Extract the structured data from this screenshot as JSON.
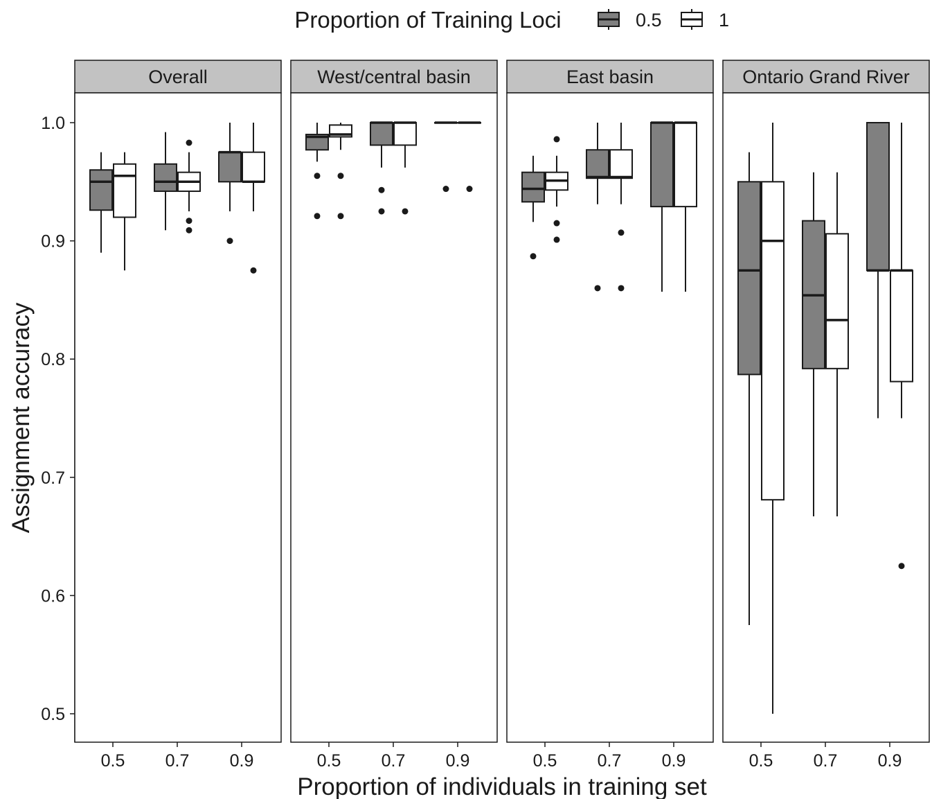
{
  "chart_data": {
    "type": "box",
    "legend": {
      "title": "Proportion of Training Loci",
      "position": "top",
      "entries": [
        {
          "label": "0.5",
          "fill": "#808080"
        },
        {
          "label": "1",
          "fill": "#ffffff"
        }
      ]
    },
    "xlabel": "Proportion of individuals in training set",
    "ylabel": "Assignment accuracy",
    "categories": [
      "0.5",
      "0.7",
      "0.9"
    ],
    "ylim": [
      0.475,
      1.03
    ],
    "yticks": [
      0.5,
      0.6,
      0.7,
      0.8,
      0.9,
      1.0
    ],
    "ytick_labels": [
      "0.5",
      "0.6",
      "0.7",
      "0.8",
      "0.9",
      "1.0"
    ],
    "grid": false,
    "facets": [
      {
        "title": "Overall",
        "boxes": [
          {
            "x": "0.5",
            "loci": "0.5",
            "whisker_low": 0.89,
            "q1": 0.926,
            "median": 0.95,
            "q3": 0.96,
            "whisker_high": 0.975,
            "outliers": []
          },
          {
            "x": "0.5",
            "loci": "1",
            "whisker_low": 0.875,
            "q1": 0.92,
            "median": 0.955,
            "q3": 0.965,
            "whisker_high": 0.975,
            "outliers": []
          },
          {
            "x": "0.7",
            "loci": "0.5",
            "whisker_low": 0.909,
            "q1": 0.942,
            "median": 0.95,
            "q3": 0.965,
            "whisker_high": 0.992,
            "outliers": []
          },
          {
            "x": "0.7",
            "loci": "1",
            "whisker_low": 0.925,
            "q1": 0.942,
            "median": 0.95,
            "q3": 0.958,
            "whisker_high": 0.975,
            "outliers": [
              0.983,
              0.917,
              0.909
            ]
          },
          {
            "x": "0.9",
            "loci": "0.5",
            "whisker_low": 0.925,
            "q1": 0.95,
            "median": 0.975,
            "q3": 0.975,
            "whisker_high": 1.0,
            "outliers": [
              0.9
            ]
          },
          {
            "x": "0.9",
            "loci": "1",
            "whisker_low": 0.925,
            "q1": 0.95,
            "median": 0.95,
            "q3": 0.975,
            "whisker_high": 1.0,
            "outliers": [
              0.875
            ]
          }
        ]
      },
      {
        "title": "West/central basin",
        "boxes": [
          {
            "x": "0.5",
            "loci": "0.5",
            "whisker_low": 0.967,
            "q1": 0.977,
            "median": 0.988,
            "q3": 0.99,
            "whisker_high": 1.0,
            "outliers": [
              0.955,
              0.921
            ]
          },
          {
            "x": "0.5",
            "loci": "1",
            "whisker_low": 0.977,
            "q1": 0.988,
            "median": 0.99,
            "q3": 0.998,
            "whisker_high": 1.0,
            "outliers": [
              0.955,
              0.921
            ]
          },
          {
            "x": "0.7",
            "loci": "0.5",
            "whisker_low": 0.962,
            "q1": 0.981,
            "median": 1.0,
            "q3": 1.0,
            "whisker_high": 1.0,
            "outliers": [
              0.943,
              0.925
            ]
          },
          {
            "x": "0.7",
            "loci": "1",
            "whisker_low": 0.962,
            "q1": 0.981,
            "median": 1.0,
            "q3": 1.0,
            "whisker_high": 1.0,
            "outliers": [
              0.925
            ]
          },
          {
            "x": "0.9",
            "loci": "0.5",
            "whisker_low": 1.0,
            "q1": 1.0,
            "median": 1.0,
            "q3": 1.0,
            "whisker_high": 1.0,
            "outliers": [
              0.944
            ]
          },
          {
            "x": "0.9",
            "loci": "1",
            "whisker_low": 1.0,
            "q1": 1.0,
            "median": 1.0,
            "q3": 1.0,
            "whisker_high": 1.0,
            "outliers": [
              0.944
            ]
          }
        ]
      },
      {
        "title": "East basin",
        "boxes": [
          {
            "x": "0.5",
            "loci": "0.5",
            "whisker_low": 0.916,
            "q1": 0.933,
            "median": 0.944,
            "q3": 0.958,
            "whisker_high": 0.972,
            "outliers": [
              0.887
            ]
          },
          {
            "x": "0.5",
            "loci": "1",
            "whisker_low": 0.929,
            "q1": 0.943,
            "median": 0.951,
            "q3": 0.958,
            "whisker_high": 0.972,
            "outliers": [
              0.986,
              0.915,
              0.901
            ]
          },
          {
            "x": "0.7",
            "loci": "0.5",
            "whisker_low": 0.931,
            "q1": 0.953,
            "median": 0.954,
            "q3": 0.977,
            "whisker_high": 1.0,
            "outliers": [
              0.86
            ]
          },
          {
            "x": "0.7",
            "loci": "1",
            "whisker_low": 0.931,
            "q1": 0.953,
            "median": 0.954,
            "q3": 0.977,
            "whisker_high": 1.0,
            "outliers": [
              0.907,
              0.86
            ]
          },
          {
            "x": "0.9",
            "loci": "0.5",
            "whisker_low": 0.857,
            "q1": 0.929,
            "median": 1.0,
            "q3": 1.0,
            "whisker_high": 1.0,
            "outliers": []
          },
          {
            "x": "0.9",
            "loci": "1",
            "whisker_low": 0.857,
            "q1": 0.929,
            "median": 1.0,
            "q3": 1.0,
            "whisker_high": 1.0,
            "outliers": []
          }
        ]
      },
      {
        "title": "Ontario Grand River",
        "boxes": [
          {
            "x": "0.5",
            "loci": "0.5",
            "whisker_low": 0.575,
            "q1": 0.787,
            "median": 0.875,
            "q3": 0.95,
            "whisker_high": 0.975,
            "outliers": []
          },
          {
            "x": "0.5",
            "loci": "1",
            "whisker_low": 0.5,
            "q1": 0.681,
            "median": 0.9,
            "q3": 0.95,
            "whisker_high": 1.0,
            "outliers": []
          },
          {
            "x": "0.7",
            "loci": "0.5",
            "whisker_low": 0.667,
            "q1": 0.792,
            "median": 0.854,
            "q3": 0.917,
            "whisker_high": 0.958,
            "outliers": []
          },
          {
            "x": "0.7",
            "loci": "1",
            "whisker_low": 0.667,
            "q1": 0.792,
            "median": 0.833,
            "q3": 0.906,
            "whisker_high": 0.958,
            "outliers": []
          },
          {
            "x": "0.9",
            "loci": "0.5",
            "whisker_low": 0.75,
            "q1": 0.875,
            "median": 0.875,
            "q3": 1.0,
            "whisker_high": 1.0,
            "outliers": []
          },
          {
            "x": "0.9",
            "loci": "1",
            "whisker_low": 0.75,
            "q1": 0.781,
            "median": 0.875,
            "q3": 0.875,
            "whisker_high": 1.0,
            "outliers": [
              0.625
            ]
          }
        ]
      }
    ]
  }
}
